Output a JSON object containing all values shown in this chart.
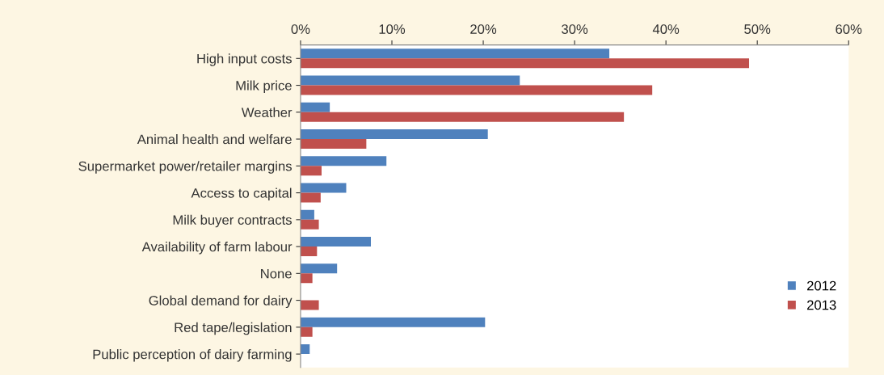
{
  "chart_data": {
    "type": "bar",
    "orientation": "horizontal",
    "categories": [
      "High input costs",
      "Milk price",
      "Weather",
      "Animal health and welfare",
      "Supermarket power/retailer margins",
      "Access to capital",
      "Milk buyer contracts",
      "Availability of farm labour",
      "None",
      "Global demand for dairy",
      "Red tape/legislation",
      "Public perception of dairy farming"
    ],
    "series": [
      {
        "name": "2012",
        "color": "#4f81bd",
        "values": [
          33.8,
          24.0,
          3.2,
          20.5,
          9.4,
          5.0,
          1.5,
          7.7,
          4.0,
          0,
          20.2,
          1.0
        ]
      },
      {
        "name": "2013",
        "color": "#c0504d",
        "values": [
          49.1,
          38.5,
          35.4,
          7.2,
          2.3,
          2.2,
          2.0,
          1.8,
          1.3,
          2.0,
          1.3,
          0
        ]
      }
    ],
    "xlim": [
      0,
      60
    ],
    "xticks": [
      {
        "value": 0,
        "label": "0%"
      },
      {
        "value": 10,
        "label": "10%"
      },
      {
        "value": 20,
        "label": "20%"
      },
      {
        "value": 30,
        "label": "30%"
      },
      {
        "value": 40,
        "label": "40%"
      },
      {
        "value": 50,
        "label": "50%"
      },
      {
        "value": 60,
        "label": "60%"
      }
    ],
    "grid": false,
    "legend": "right"
  }
}
